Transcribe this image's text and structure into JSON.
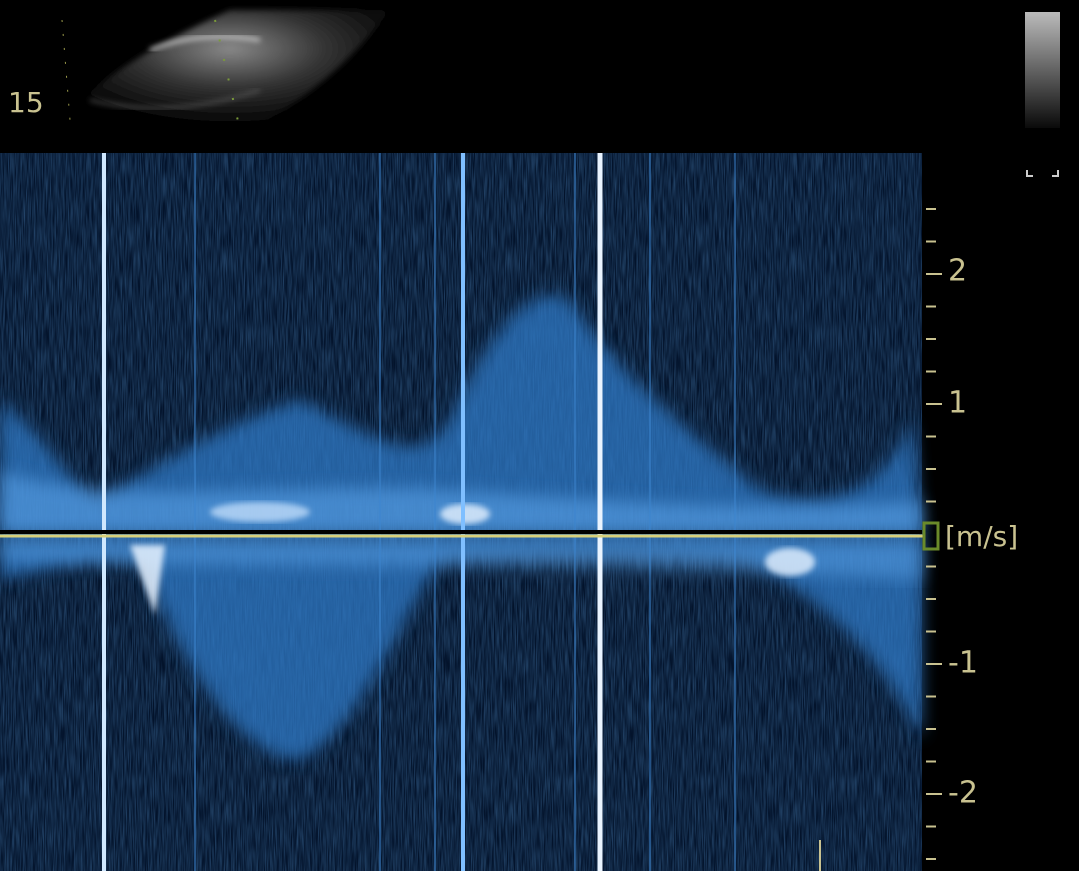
{
  "depth_label": "15",
  "velocity_scale": {
    "unit": "[m/s]",
    "ticks": [
      "2",
      "1",
      "-1",
      "-2"
    ]
  }
}
